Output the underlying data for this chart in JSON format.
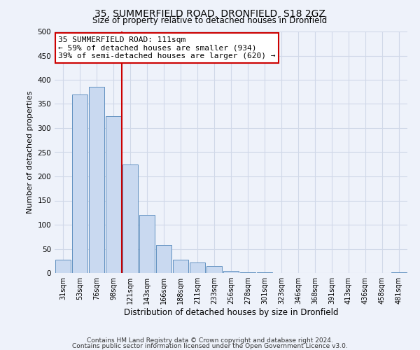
{
  "title": "35, SUMMERFIELD ROAD, DRONFIELD, S18 2GZ",
  "subtitle": "Size of property relative to detached houses in Dronfield",
  "xlabel": "Distribution of detached houses by size in Dronfield",
  "ylabel": "Number of detached properties",
  "bin_labels": [
    "31sqm",
    "53sqm",
    "76sqm",
    "98sqm",
    "121sqm",
    "143sqm",
    "166sqm",
    "188sqm",
    "211sqm",
    "233sqm",
    "256sqm",
    "278sqm",
    "301sqm",
    "323sqm",
    "346sqm",
    "368sqm",
    "391sqm",
    "413sqm",
    "436sqm",
    "458sqm",
    "481sqm"
  ],
  "bar_heights": [
    27,
    370,
    385,
    325,
    225,
    120,
    58,
    27,
    22,
    15,
    5,
    2,
    1,
    0,
    0,
    0,
    0,
    0,
    0,
    0,
    2
  ],
  "bar_color": "#c9d9f0",
  "bar_edge_color": "#6090c0",
  "annotation_title": "35 SUMMERFIELD ROAD: 111sqm",
  "annotation_line1": "← 59% of detached houses are smaller (934)",
  "annotation_line2": "39% of semi-detached houses are larger (620) →",
  "annotation_box_color": "#ffffff",
  "annotation_border_color": "#cc0000",
  "vline_color": "#cc0000",
  "vline_x_bin": 3.5,
  "ylim": [
    0,
    500
  ],
  "grid_color": "#d0d8e8",
  "background_color": "#eef2fa",
  "footer1": "Contains HM Land Registry data © Crown copyright and database right 2024.",
  "footer2": "Contains public sector information licensed under the Open Government Licence v3.0."
}
